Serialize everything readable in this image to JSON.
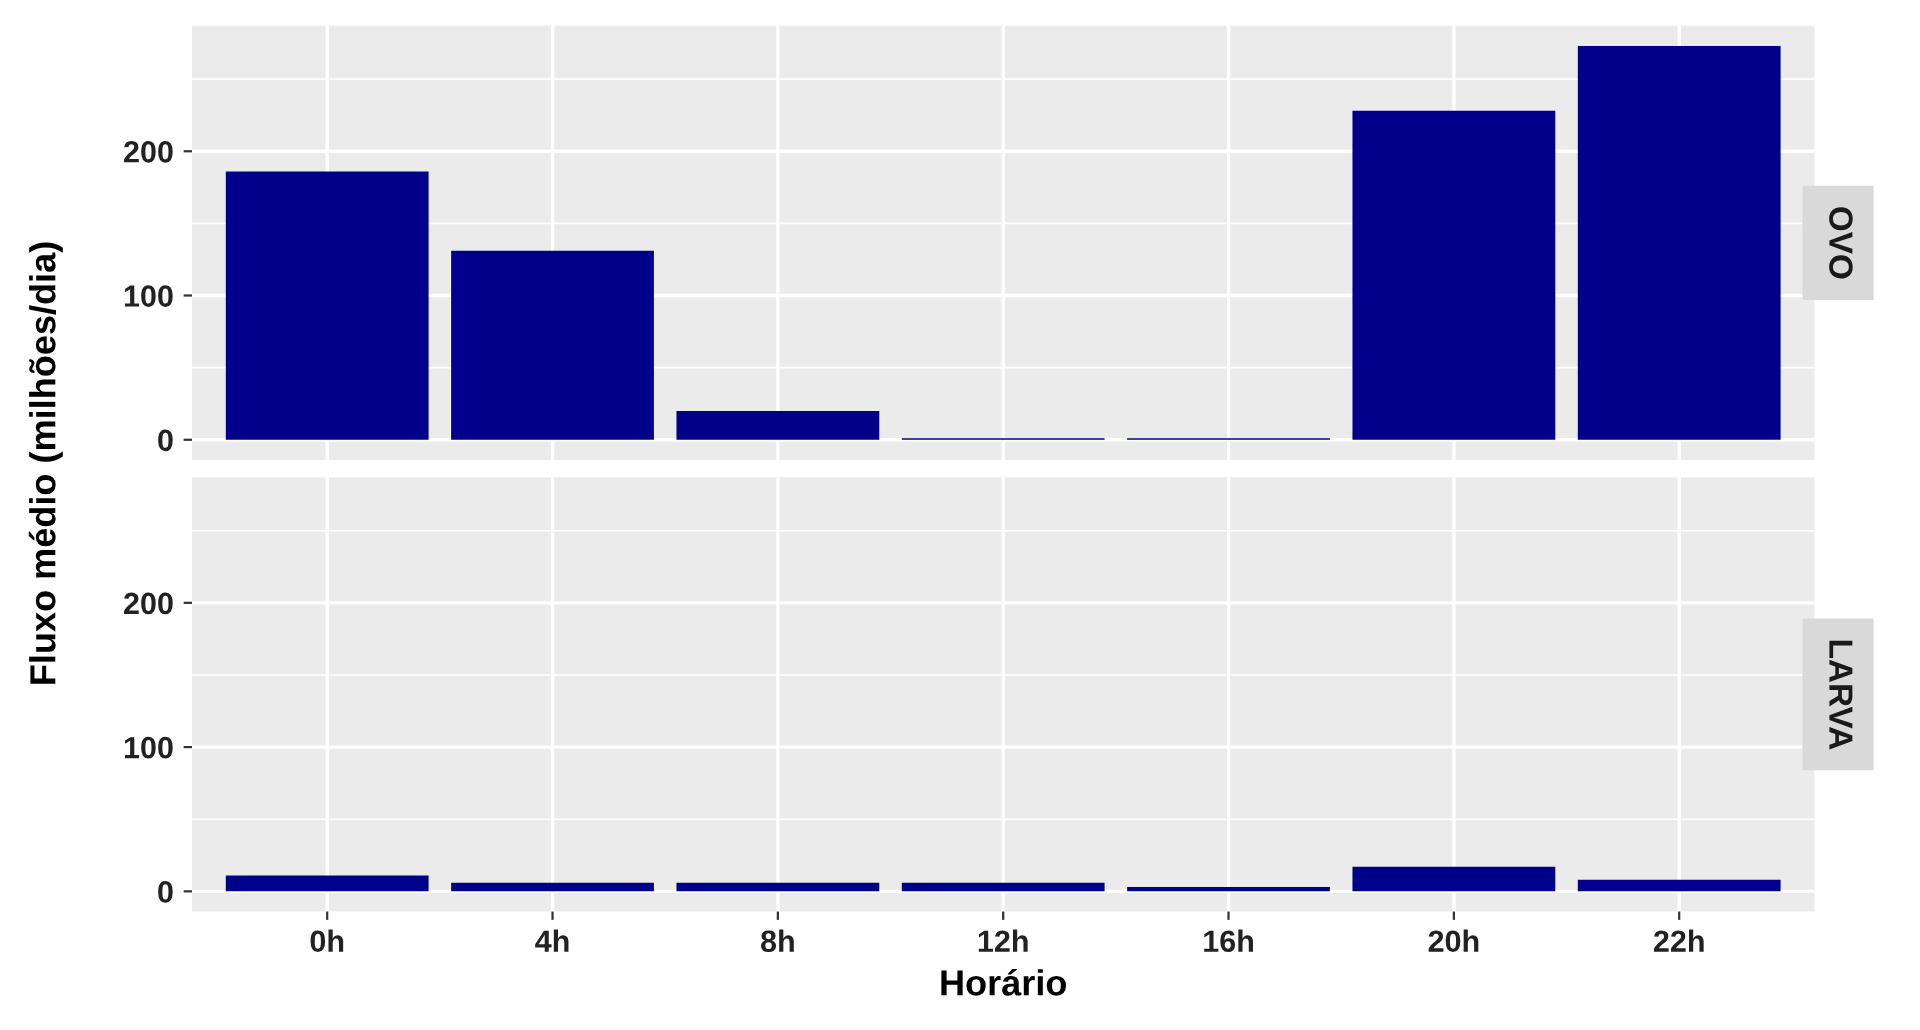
{
  "chart_data": [
    {
      "type": "bar",
      "title": "OVO",
      "ylabel": "Fluxo médio (milhões/dia)",
      "categories": [
        "0h",
        "4h",
        "8h",
        "12h",
        "16h",
        "20h",
        "22h"
      ],
      "color": "#00008b",
      "values": [
        186,
        131,
        20,
        1,
        1,
        228,
        273
      ],
      "ylim": [
        -14,
        287
      ],
      "yticks": [
        0,
        100,
        200
      ],
      "grid": true,
      "tick_labels": "y"
    },
    {
      "type": "bar",
      "title": "LARVA",
      "xlabel": "Horário",
      "categories": [
        "0h",
        "4h",
        "8h",
        "12h",
        "16h",
        "20h",
        "22h"
      ],
      "color": "#00008b",
      "values": [
        11,
        6,
        6,
        6,
        3,
        17,
        8
      ],
      "ylim": [
        -14,
        287
      ],
      "yticks": [
        0,
        100,
        200
      ],
      "grid": true
    }
  ]
}
